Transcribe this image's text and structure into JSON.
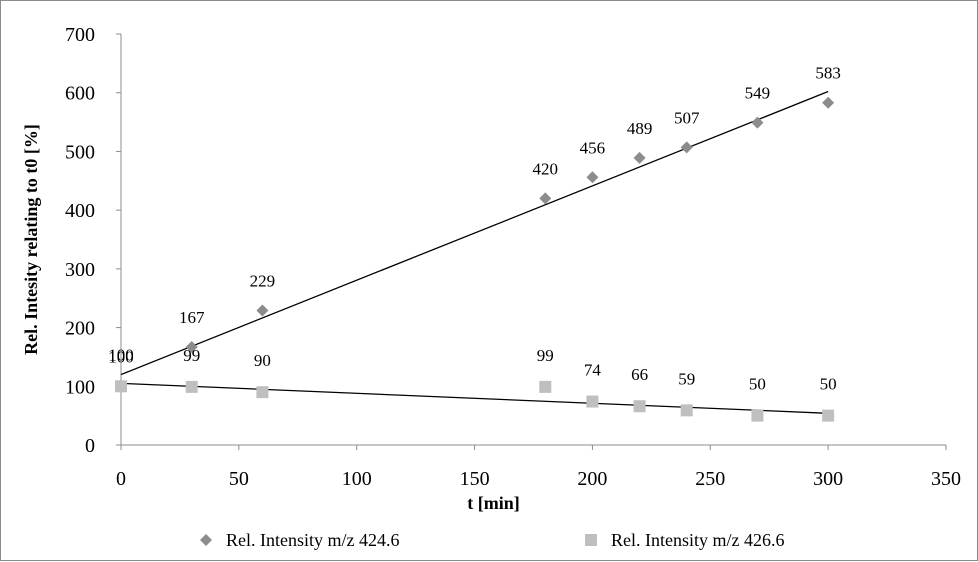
{
  "chart_data": {
    "type": "scatter",
    "xlabel": "t [min]",
    "ylabel": "Rel. Intesity relating to t0 [%]",
    "xlim": [
      0,
      350
    ],
    "ylim": [
      0,
      700
    ],
    "xticks": [
      0,
      50,
      100,
      150,
      200,
      250,
      300,
      350
    ],
    "yticks": [
      0,
      100,
      200,
      300,
      400,
      500,
      600,
      700
    ],
    "grid": false,
    "legend_position": "bottom",
    "series": [
      {
        "name": "Rel. Intensity m/z 424.6",
        "marker": "diamond",
        "color": "#8c8c8c",
        "x": [
          0,
          30,
          60,
          180,
          200,
          220,
          240,
          270,
          300
        ],
        "y": [
          100,
          167,
          229,
          420,
          456,
          489,
          507,
          549,
          583
        ],
        "labels": [
          "100",
          "167",
          "229",
          "420",
          "456",
          "489",
          "507",
          "549",
          "583"
        ],
        "trendline": {
          "x": [
            0,
            300
          ],
          "y": [
            120,
            602
          ]
        }
      },
      {
        "name": "Rel. Intensity m/z 426.6",
        "marker": "square",
        "color": "#bfbfbf",
        "x": [
          0,
          30,
          60,
          180,
          200,
          220,
          240,
          270,
          300
        ],
        "y": [
          100,
          99,
          90,
          99,
          74,
          66,
          59,
          50,
          50
        ],
        "labels": [
          "100",
          "99",
          "90",
          "99",
          "74",
          "66",
          "59",
          "50",
          "50"
        ],
        "trendline": {
          "x": [
            0,
            300
          ],
          "y": [
            105,
            54
          ]
        }
      }
    ]
  }
}
